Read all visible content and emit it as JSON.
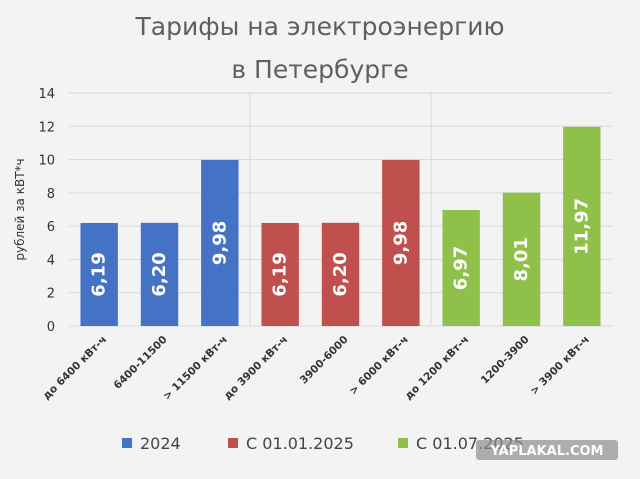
{
  "chart_data": {
    "type": "bar",
    "title_lines": [
      "Тарифы на электроэнергию",
      "в Петербурге"
    ],
    "ylabel": "рублей за кВТ*ч",
    "ylim": [
      0,
      14
    ],
    "yticks": [
      "0",
      "2",
      "4",
      "6",
      "8",
      "10",
      "12",
      "14"
    ],
    "grid": true,
    "legend_position": "bottom",
    "categories": [
      "до 6400 кВт-ч",
      "6400-11500",
      "> 11500 кВт-ч",
      "до 3900 кВт-ч",
      "3900-6000",
      "> 6000 кВт-ч",
      "до 1200 кВт-ч",
      "1200-3900",
      "> 3900 кВт-ч"
    ],
    "series": [
      {
        "name": "2024",
        "color": "#4472c4",
        "values": [
          6.19,
          6.2,
          9.98,
          null,
          null,
          null,
          null,
          null,
          null
        ],
        "labels": [
          "6,19",
          "6,20",
          "9,98",
          "",
          "",
          "",
          "",
          "",
          ""
        ]
      },
      {
        "name": "С 01.01.2025",
        "color": "#c0504d",
        "values": [
          null,
          null,
          null,
          6.19,
          6.2,
          9.98,
          null,
          null,
          null
        ],
        "labels": [
          "",
          "",
          "",
          "6,19",
          "6,20",
          "9,98",
          "",
          "",
          ""
        ]
      },
      {
        "name": "С 01.07.2025",
        "color": "#8fc04a",
        "values": [
          null,
          null,
          null,
          null,
          null,
          null,
          6.97,
          8.01,
          11.97
        ],
        "labels": [
          "",
          "",
          "",
          "",
          "",
          "",
          "6,97",
          "8,01",
          "11,97"
        ]
      }
    ],
    "watermark": "YAPLAKAL.COM"
  }
}
